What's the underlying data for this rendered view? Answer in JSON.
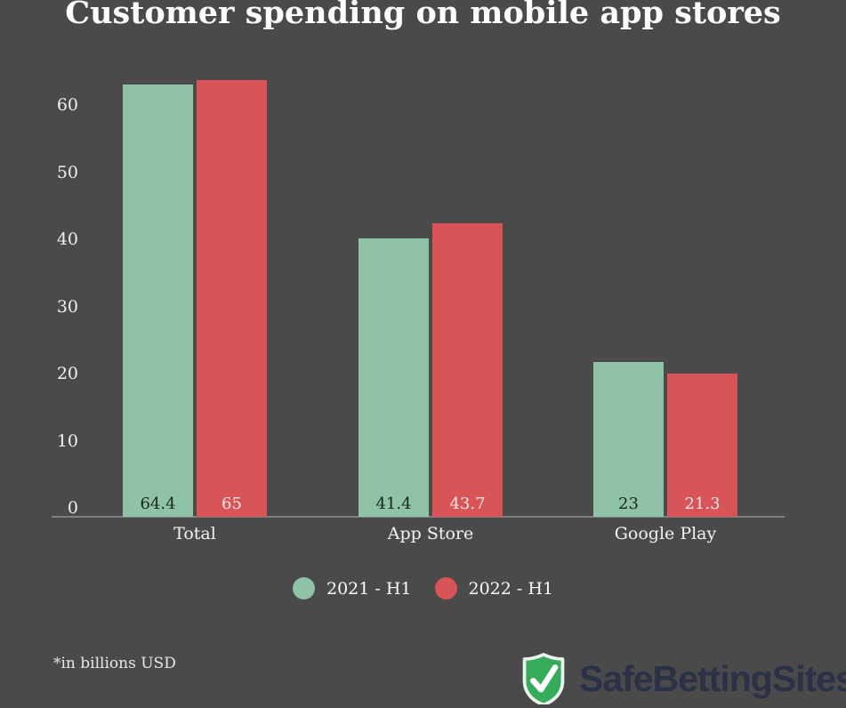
{
  "title": "Customer spending on mobile app stores",
  "chart_data": {
    "type": "bar",
    "categories": [
      "Total",
      "App Store",
      "Google Play"
    ],
    "series": [
      {
        "name": "2021 - H1",
        "color": "#8fc2a6",
        "label_color": "#16281e",
        "values": [
          64.4,
          41.4,
          23
        ]
      },
      {
        "name": "2022 - H1",
        "color": "#d85456",
        "label_color": "#fbeaea",
        "values": [
          65,
          43.7,
          21.3
        ]
      }
    ],
    "yticks": [
      0,
      10,
      20,
      30,
      40,
      50,
      60
    ],
    "ylim": [
      0,
      65
    ],
    "xlabel": "",
    "ylabel": "",
    "grid": false,
    "legend_position": "bottom"
  },
  "footnote": "*in billions USD",
  "logo": {
    "text": "SafeBettingSites.",
    "shield_icon": "shield-with-checkmark",
    "shield_color": "#36ab5b",
    "shield_border_color": "#e9f4ec",
    "check_color": "#ffffff",
    "text_color": "#2b3147"
  },
  "colors": {
    "background": "#4a4a4a",
    "title": "#fdfdfd",
    "axis_line": "#8d8d8d",
    "tick_label": "#f0f0f0",
    "category_label": "#f3f3f3"
  }
}
